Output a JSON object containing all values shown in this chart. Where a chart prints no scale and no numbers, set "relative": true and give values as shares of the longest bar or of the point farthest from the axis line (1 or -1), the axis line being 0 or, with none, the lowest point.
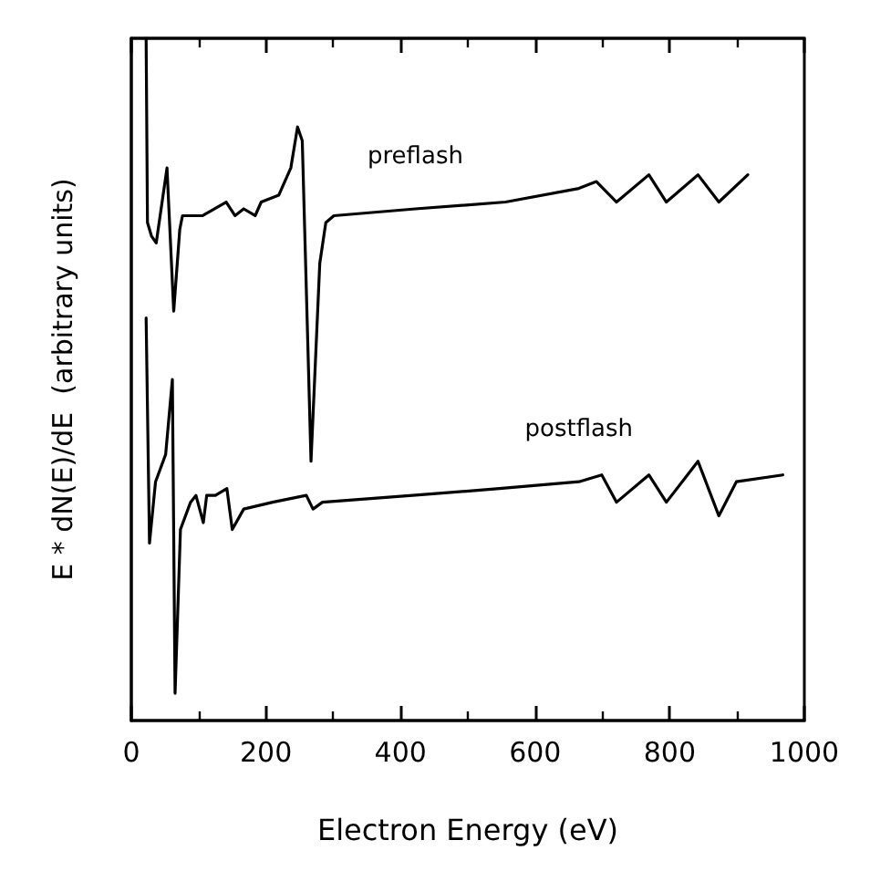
{
  "chart_data": {
    "type": "line",
    "relative": true,
    "xlabel": "Electron Energy (eV)",
    "ylabel": "E * dN(E)/dE  (arbitrary units)",
    "xlim": [
      0,
      1000
    ],
    "xticks": [
      0,
      200,
      400,
      600,
      800,
      1000
    ],
    "grid": false,
    "legend": false,
    "marker": "none",
    "line_style": "solid",
    "series": [
      {
        "name": "preflash",
        "color": "#000000",
        "x": [
          22,
          24,
          30,
          37,
          53,
          63,
          72,
          76,
          93,
          106,
          141,
          154,
          167,
          184,
          193,
          219,
          237,
          247,
          254,
          267,
          280,
          289,
          301,
          422,
          556,
          665,
          691,
          721,
          769,
          795,
          842,
          873,
          916
        ],
        "values": [
          1.0,
          0.73,
          0.71,
          0.7,
          0.81,
          0.6,
          0.72,
          0.74,
          0.74,
          0.74,
          0.76,
          0.74,
          0.75,
          0.74,
          0.76,
          0.77,
          0.81,
          0.87,
          0.85,
          0.38,
          0.67,
          0.73,
          0.74,
          0.75,
          0.76,
          0.78,
          0.79,
          0.76,
          0.8,
          0.76,
          0.8,
          0.76,
          0.8
        ]
      },
      {
        "name": "postflash",
        "color": "#000000",
        "x": [
          22,
          27,
          36,
          51,
          61,
          65,
          73,
          88,
          96,
          107,
          112,
          125,
          142,
          150,
          167,
          210,
          260,
          270,
          284,
          418,
          547,
          665,
          699,
          721,
          769,
          795,
          842,
          873,
          899,
          968
        ],
        "values": [
          0.59,
          0.26,
          0.35,
          0.39,
          0.5,
          0.04,
          0.28,
          0.32,
          0.33,
          0.29,
          0.33,
          0.33,
          0.34,
          0.28,
          0.31,
          0.32,
          0.33,
          0.31,
          0.32,
          0.33,
          0.34,
          0.35,
          0.36,
          0.32,
          0.36,
          0.32,
          0.38,
          0.3,
          0.35,
          0.36
        ]
      }
    ]
  }
}
